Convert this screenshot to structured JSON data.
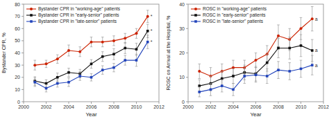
{
  "chart_data": [
    {
      "type": "line",
      "x": [
        2001,
        2002,
        2003,
        2004,
        2005,
        2006,
        2007,
        2008,
        2009,
        2010,
        2011
      ],
      "series": [
        {
          "name": "Bystander CPR in \"working-age\" patients",
          "color": "#cc2200",
          "marker": "circle",
          "values": [
            30,
            31,
            35,
            42,
            41,
            49,
            49,
            50,
            52,
            56,
            70
          ],
          "errors": [
            4,
            3,
            3.5,
            4.5,
            4,
            4,
            4,
            4,
            4,
            4,
            5
          ]
        },
        {
          "name": "Bystander CPR in \"early-senior\" patients",
          "color": "#111111",
          "marker": "square",
          "values": [
            17,
            15,
            20,
            24,
            23,
            31,
            37,
            39,
            44,
            43,
            58
          ],
          "errors": [
            3.5,
            3,
            3.5,
            3.5,
            3.5,
            3.5,
            4,
            4.5,
            4.5,
            5,
            5.5
          ]
        },
        {
          "name": "Bystander CPR in \"late-senior\" patients",
          "color": "#2244bb",
          "marker": "square",
          "values": [
            16,
            11,
            15,
            16,
            21,
            20,
            26,
            28,
            34,
            34,
            49
          ],
          "errors": [
            3.5,
            3,
            3,
            3.5,
            3.5,
            3,
            3.5,
            3.5,
            4,
            5,
            5.5
          ]
        }
      ],
      "xlabel": "Year",
      "ylabel": "Bystander CPR, %",
      "xlim": [
        2000,
        2012
      ],
      "xticks": [
        2000,
        2002,
        2004,
        2006,
        2008,
        2010,
        2012
      ],
      "ylim": [
        0,
        80
      ],
      "yticks": [
        0,
        10,
        20,
        30,
        40,
        50,
        60,
        70,
        80
      ],
      "annotation": "*",
      "legend": "upper left",
      "grid": false
    },
    {
      "type": "line",
      "x": [
        2001,
        2002,
        2003,
        2004,
        2005,
        2006,
        2007,
        2008,
        2009,
        2010,
        2011
      ],
      "series": [
        {
          "name": "ROSC in \"working-age\" patients",
          "color": "#cc2200",
          "marker": "circle",
          "values": [
            12.5,
            10.5,
            12.5,
            14,
            14,
            17,
            19.5,
            27,
            25.5,
            30,
            34
          ],
          "errors": [
            3,
            3.5,
            3,
            3,
            3,
            3,
            3.5,
            4.5,
            4.5,
            4.5,
            5
          ]
        },
        {
          "name": "ROSC in \"early-senior\" patients",
          "color": "#111111",
          "marker": "square",
          "values": [
            6.5,
            7.5,
            9.5,
            10.5,
            12,
            11.5,
            16,
            22,
            22,
            23,
            21
          ],
          "errors": [
            2.5,
            3,
            3,
            3,
            3,
            3,
            3.5,
            4,
            4.5,
            4.5,
            4.5
          ]
        },
        {
          "name": "ROSC in \"late-senior\" patients",
          "color": "#2244bb",
          "marker": "square",
          "values": [
            4,
            5,
            6.5,
            5,
            10.5,
            11,
            10.5,
            13,
            12.5,
            13.5,
            15
          ],
          "errors": [
            2,
            2.5,
            2.5,
            2.5,
            3,
            3,
            3,
            3.5,
            3.5,
            3.5,
            4
          ]
        }
      ],
      "xlabel": "Year",
      "ylabel": "ROSC on Arrival at the Hospital, %",
      "xlim": [
        2000,
        2012
      ],
      "xticks": [
        2000,
        2002,
        2004,
        2006,
        2008,
        2010,
        2012
      ],
      "ylim": [
        0,
        40
      ],
      "yticks": [
        0,
        10,
        20,
        30,
        40
      ],
      "annotation": "a",
      "legend": "upper left",
      "grid": false
    }
  ]
}
